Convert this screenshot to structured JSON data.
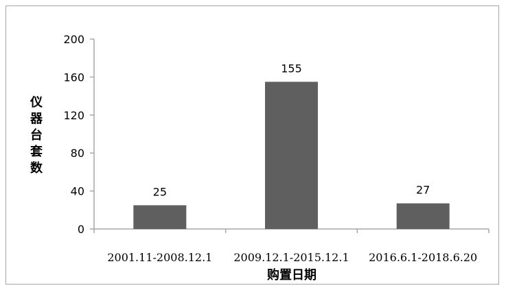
{
  "chart_data": {
    "type": "bar",
    "categories": [
      "2001.11-2008.12.1",
      "2009.12.1-2015.12.1",
      "2016.6.1-2018.6.20"
    ],
    "values": [
      25,
      155,
      27
    ],
    "data_labels": [
      "25",
      "155",
      "27"
    ],
    "title": "",
    "xlabel": "购置日期",
    "ylabel": "仪器台套数",
    "ylim": [
      0,
      200
    ],
    "yticks": [
      0,
      40,
      80,
      120,
      160,
      200
    ],
    "grid": false,
    "legend": "none",
    "bar_color": "#5f5f5f",
    "axis_color": "#a6a6a6"
  }
}
